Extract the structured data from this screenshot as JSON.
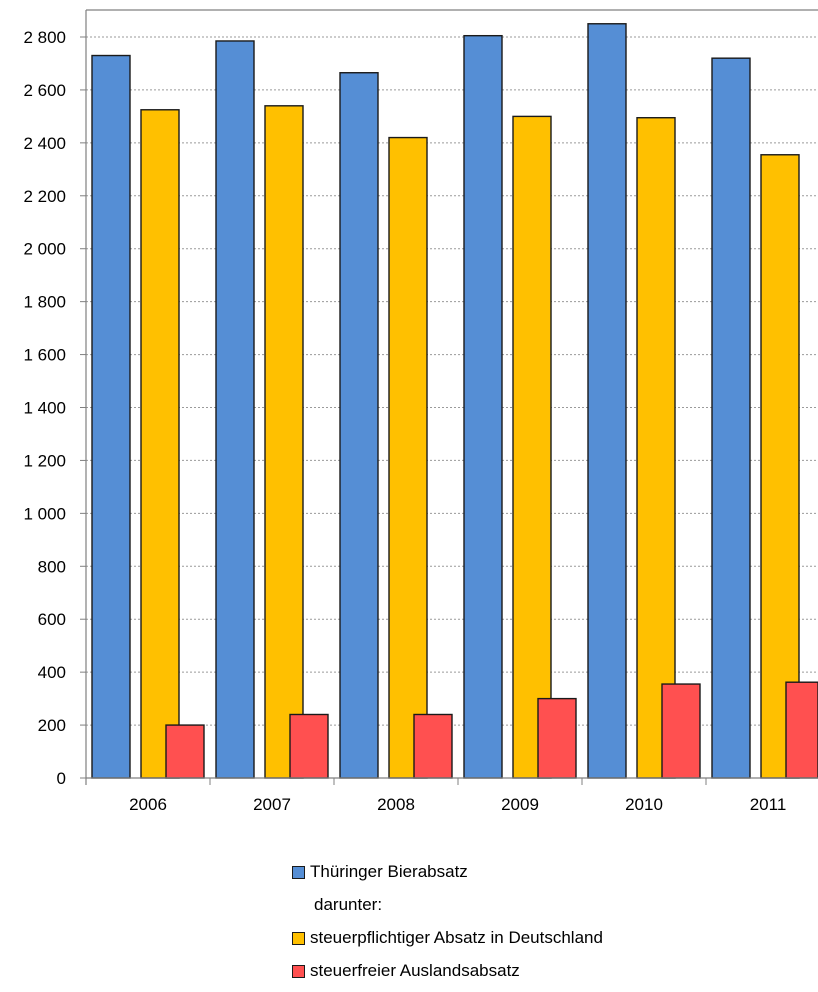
{
  "chart_data": {
    "type": "bar",
    "categories": [
      "2006",
      "2007",
      "2008",
      "2009",
      "2010",
      "2011"
    ],
    "series": [
      {
        "name": "Thüringer Bierabsatz",
        "color": "#558ed5",
        "values": [
          2730,
          2785,
          2665,
          2805,
          2850,
          2720
        ]
      },
      {
        "name": "steuerpflichtiger Absatz in Deutschland",
        "color": "#ffc000",
        "values": [
          2525,
          2540,
          2420,
          2500,
          2495,
          2355
        ]
      },
      {
        "name": "steuerfreier Auslandsabsatz",
        "color": "#ff5050",
        "values": [
          200,
          240,
          240,
          300,
          355,
          362
        ]
      }
    ],
    "yticks": [
      "0",
      "200",
      "400",
      "600",
      "800",
      "1 000",
      "1 200",
      "1 400",
      "1 600",
      "1 800",
      "2 000",
      "2 200",
      "2 400",
      "2 600",
      "2 800"
    ],
    "ylim": [
      0,
      2800
    ],
    "grid": true,
    "legend_position": "bottom",
    "legend_note": "darunter:"
  }
}
